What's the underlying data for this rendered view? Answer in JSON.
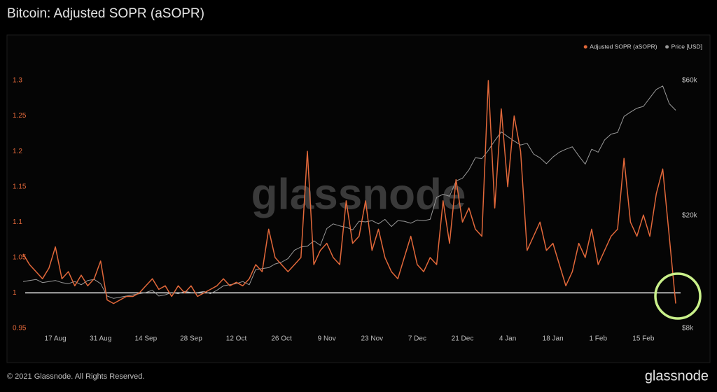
{
  "chart_data": {
    "type": "line",
    "title": "Bitcoin: Adjusted SOPR (aSOPR)",
    "watermark": "glassnode",
    "footer": "© 2021 Glassnode. All Rights Reserved.",
    "logo": "glassnode",
    "categories": [
      null,
      null,
      null,
      null,
      null,
      "17 Aug",
      null,
      null,
      null,
      null,
      null,
      null,
      "31 Aug",
      null,
      null,
      null,
      null,
      null,
      null,
      "14 Sep",
      null,
      null,
      null,
      null,
      null,
      null,
      "28 Sep",
      null,
      null,
      null,
      null,
      null,
      null,
      "12 Oct",
      null,
      null,
      null,
      null,
      null,
      null,
      "26 Oct",
      null,
      null,
      null,
      null,
      null,
      null,
      "9 Nov",
      null,
      null,
      null,
      null,
      null,
      null,
      "23 Nov",
      null,
      null,
      null,
      null,
      null,
      null,
      "7 Dec",
      null,
      null,
      null,
      null,
      null,
      null,
      "21 Dec",
      null,
      null,
      null,
      null,
      null,
      null,
      "4 Jan",
      null,
      null,
      null,
      null,
      null,
      null,
      "18 Jan",
      null,
      null,
      null,
      null,
      null,
      null,
      "1 Feb",
      null,
      null,
      null,
      null,
      null,
      null,
      "15 Feb",
      null,
      null,
      null,
      null,
      null
    ],
    "series": [
      {
        "name": "Adjusted SOPR (aSOPR)",
        "color": "#e2683a",
        "axis": "y",
        "values": [
          1.055,
          1.04,
          1.03,
          1.02,
          1.035,
          1.065,
          1.02,
          1.03,
          1.01,
          1.025,
          1.01,
          1.02,
          1.045,
          0.99,
          0.985,
          0.99,
          0.995,
          0.995,
          1.0,
          1.01,
          1.02,
          1.005,
          1.01,
          0.995,
          1.01,
          1.0,
          1.01,
          0.995,
          1.0,
          1.005,
          1.01,
          1.02,
          1.01,
          1.015,
          1.01,
          1.02,
          1.04,
          1.03,
          1.09,
          1.05,
          1.04,
          1.03,
          1.04,
          1.05,
          1.2,
          1.04,
          1.06,
          1.07,
          1.05,
          1.04,
          1.13,
          1.07,
          1.08,
          1.13,
          1.06,
          1.09,
          1.05,
          1.03,
          1.02,
          1.05,
          1.08,
          1.04,
          1.03,
          1.05,
          1.04,
          1.13,
          1.07,
          1.16,
          1.1,
          1.12,
          1.09,
          1.08,
          1.3,
          1.12,
          1.26,
          1.15,
          1.25,
          1.2,
          1.06,
          1.08,
          1.1,
          1.06,
          1.07,
          1.04,
          1.01,
          1.03,
          1.07,
          1.05,
          1.09,
          1.04,
          1.06,
          1.08,
          1.09,
          1.19,
          1.1,
          1.08,
          1.11,
          1.08,
          1.14,
          1.175,
          1.08,
          0.985
        ]
      },
      {
        "name": "Price [USD]",
        "color": "#9a9a9a",
        "axis": "y2",
        "values": [
          11700,
          11800,
          11900,
          11600,
          11700,
          11800,
          11600,
          11500,
          11700,
          11400,
          11800,
          11900,
          11500,
          10400,
          10200,
          10300,
          10400,
          10500,
          10600,
          10700,
          10900,
          10400,
          10500,
          10700,
          10600,
          10800,
          10700,
          10700,
          10800,
          10600,
          10900,
          11300,
          11400,
          11500,
          11700,
          11400,
          12900,
          13000,
          13100,
          13500,
          13700,
          14100,
          15100,
          15500,
          15600,
          16300,
          15700,
          18000,
          18700,
          18400,
          18200,
          17800,
          19100,
          19000,
          19200,
          18700,
          19400,
          18300,
          19200,
          19100,
          18800,
          19300,
          19200,
          19400,
          23200,
          23800,
          23400,
          26500,
          27100,
          29000,
          32000,
          31800,
          34000,
          36800,
          39500,
          38000,
          36700,
          35500,
          36000,
          33000,
          32000,
          30500,
          32200,
          33500,
          34300,
          35000,
          32500,
          30400,
          34300,
          33500,
          37000,
          38800,
          39300,
          44800,
          46400,
          47900,
          48600,
          52100,
          55800,
          57400,
          49700,
          47100
        ]
      }
    ],
    "ylim": [
      0.95,
      1.3
    ],
    "yticks": [
      0.95,
      1,
      1.05,
      1.1,
      1.15,
      1.2,
      1.25,
      1.3
    ],
    "y2lim": [
      8000,
      60000
    ],
    "y2log": true,
    "y2ticks": [
      {
        "value": 8000,
        "label": "$8k"
      },
      {
        "value": 20000,
        "label": "$20k"
      },
      {
        "value": 60000,
        "label": "$60k"
      }
    ],
    "reference_line": 1,
    "grid": false,
    "legend": "top-right"
  }
}
